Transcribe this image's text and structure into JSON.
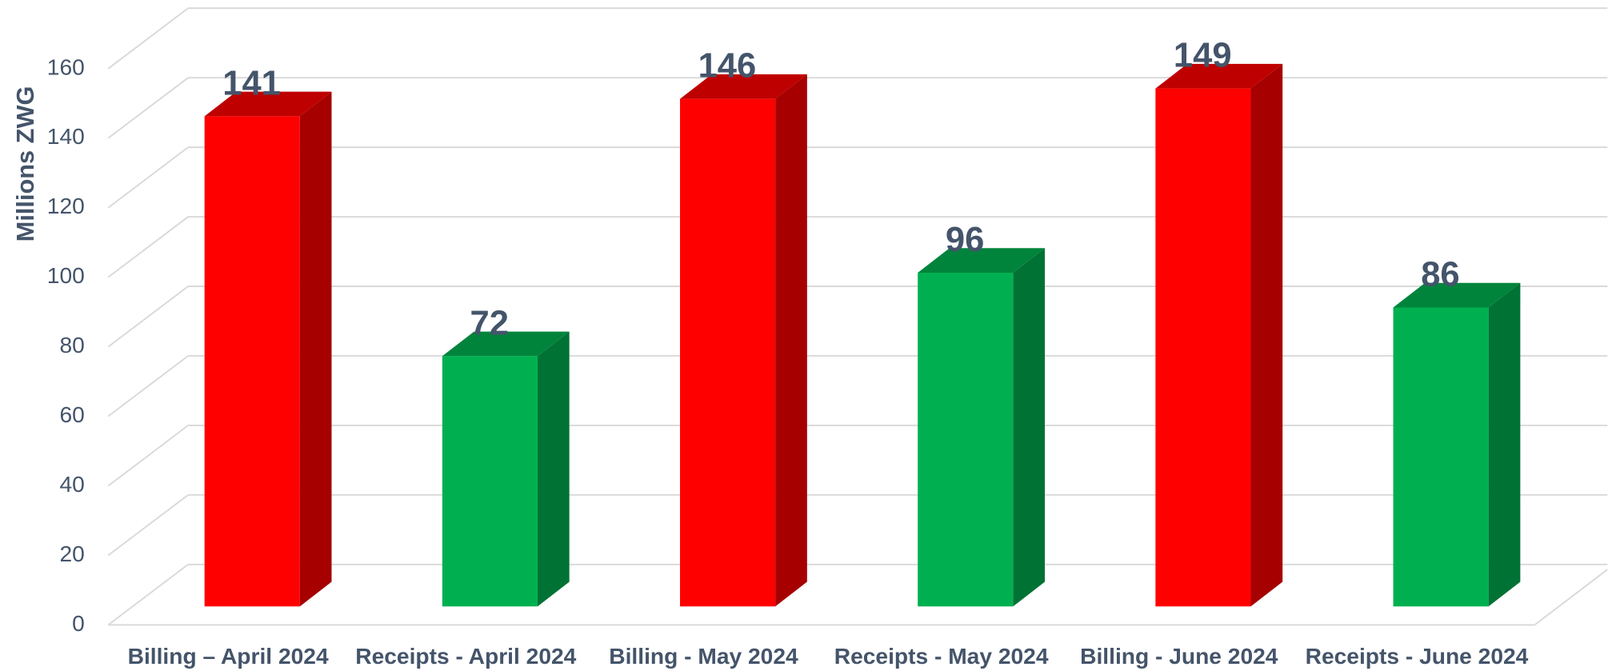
{
  "chart_data": {
    "type": "bar3d",
    "y_label": "Millions ZWG",
    "categories": [
      "Billing – April 2024",
      "Receipts - April 2024",
      "Billing - May 2024",
      "Receipts - May 2024",
      "Billing - June 2024",
      "Receipts - June 2024"
    ],
    "values": [
      141,
      72,
      146,
      96,
      149,
      86
    ],
    "colors": [
      "#ff0000",
      "#00b050",
      "#ff0000",
      "#00b050",
      "#ff0000",
      "#00b050"
    ],
    "ylim": [
      0,
      160
    ],
    "yticks": [
      0,
      20,
      40,
      60,
      80,
      100,
      120,
      140,
      160
    ],
    "grid": true
  }
}
